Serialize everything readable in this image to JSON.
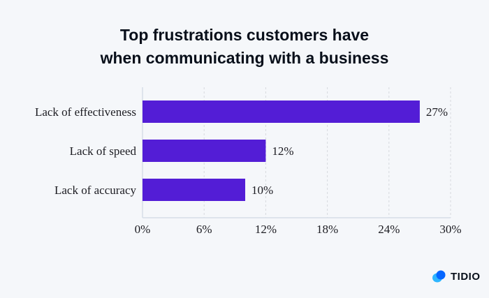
{
  "chart_data": {
    "type": "bar",
    "orientation": "horizontal",
    "title": "Top frustrations customers have when communicating with a business",
    "title_lines": [
      "Top frustrations customers have",
      "when communicating with a business"
    ],
    "categories": [
      "Lack of effectiveness",
      "Lack of speed",
      "Lack of accuracy"
    ],
    "values": [
      27,
      12,
      10
    ],
    "data_labels": [
      "27%",
      "12%",
      "10%"
    ],
    "xlim": [
      0,
      30
    ],
    "xticks": [
      0,
      6,
      12,
      18,
      24,
      30
    ],
    "xtick_labels": [
      "0%",
      "6%",
      "12%",
      "18%",
      "24%",
      "30%"
    ],
    "grid": "vertical dashed",
    "bar_color": "#531dd6"
  },
  "brand": {
    "name": "TIDIO",
    "colors": [
      "#0566ff",
      "#2eb6ff"
    ]
  }
}
